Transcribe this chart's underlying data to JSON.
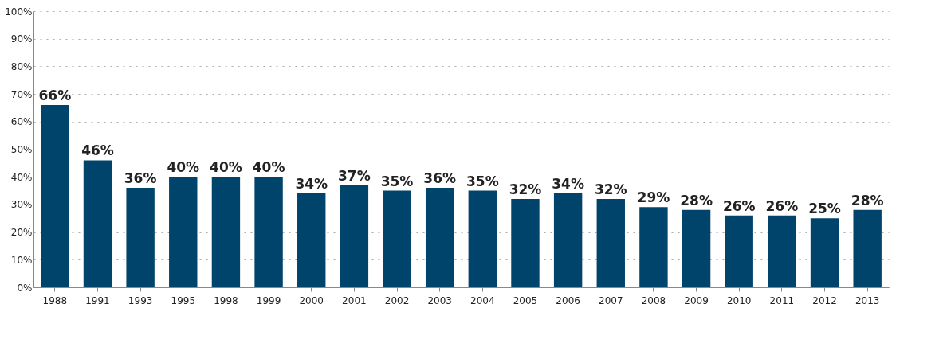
{
  "chart_data": {
    "type": "bar",
    "categories": [
      "1988",
      "1991",
      "1993",
      "1995",
      "1998",
      "1999",
      "2000",
      "2001",
      "2002",
      "2003",
      "2004",
      "2005",
      "2006",
      "2007",
      "2008",
      "2009",
      "2010",
      "2011",
      "2012",
      "2013"
    ],
    "values": [
      66,
      46,
      36,
      40,
      40,
      40,
      34,
      37,
      35,
      36,
      35,
      32,
      34,
      32,
      29,
      28,
      26,
      26,
      25,
      28
    ],
    "value_labels": [
      "66%",
      "46%",
      "36%",
      "40%",
      "40%",
      "40%",
      "34%",
      "37%",
      "35%",
      "36%",
      "35%",
      "32%",
      "34%",
      "32%",
      "29%",
      "28%",
      "26%",
      "26%",
      "25%",
      "28%"
    ],
    "color": "#00446b",
    "ylim": [
      0,
      100
    ],
    "yticks": [
      {
        "value": 0,
        "label": "0%"
      },
      {
        "value": 10,
        "label": "10%"
      },
      {
        "value": 20,
        "label": "20%"
      },
      {
        "value": 30,
        "label": "30%"
      },
      {
        "value": 40,
        "label": "40%"
      },
      {
        "value": 50,
        "label": "50%"
      },
      {
        "value": 60,
        "label": "60%"
      },
      {
        "value": 70,
        "label": "70%"
      },
      {
        "value": 80,
        "label": "80%"
      },
      {
        "value": 90,
        "label": "90%"
      },
      {
        "value": 100,
        "label": "100%"
      }
    ],
    "grid": "y"
  }
}
